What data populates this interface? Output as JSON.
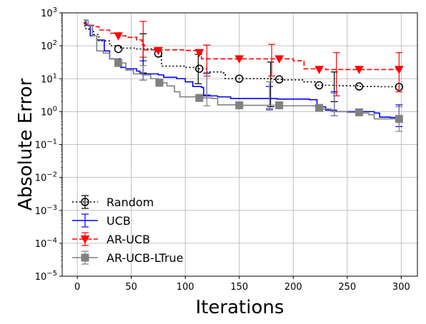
{
  "chart_data": {
    "type": "line",
    "xlabel": "Iterations",
    "ylabel": "Absolute Error",
    "xlim": [
      -14,
      315
    ],
    "ylim_log10": [
      -5,
      3
    ],
    "yscale": "log",
    "grid": true,
    "legend_placement": "lower-left",
    "x_ticks": [
      0,
      50,
      100,
      150,
      200,
      250,
      300
    ],
    "x_tick_labels": [
      "0",
      "50",
      "100",
      "150",
      "200",
      "250",
      "300"
    ],
    "y_ticks_log10": [
      -5,
      -4,
      -3,
      -2,
      -1,
      0,
      1,
      2,
      3
    ],
    "y_tick_labels": [
      {
        "base": "10",
        "exp": "−5"
      },
      {
        "base": "10",
        "exp": "−4"
      },
      {
        "base": "10",
        "exp": "−3"
      },
      {
        "base": "10",
        "exp": "−2"
      },
      {
        "base": "10",
        "exp": "−1"
      },
      {
        "base": "10",
        "exp": "0"
      },
      {
        "base": "10",
        "exp": "1"
      },
      {
        "base": "10",
        "exp": "2"
      },
      {
        "base": "10",
        "exp": "3"
      }
    ],
    "series": [
      {
        "name": "Random",
        "color": "#000000",
        "linestyle": "dotted",
        "marker": "circle-open",
        "line": [
          [
            6,
            500
          ],
          [
            7,
            380
          ],
          [
            8,
            330
          ],
          [
            10,
            320
          ],
          [
            15,
            220
          ],
          [
            20,
            140
          ],
          [
            30,
            100
          ],
          [
            40,
            85
          ],
          [
            55,
            80
          ],
          [
            75,
            70
          ],
          [
            78,
            24
          ],
          [
            100,
            22
          ],
          [
            110,
            20
          ],
          [
            120,
            16
          ],
          [
            135,
            15
          ],
          [
            137,
            10
          ],
          [
            150,
            10
          ],
          [
            180,
            9.5
          ],
          [
            190,
            9.2
          ],
          [
            210,
            8
          ],
          [
            220,
            6.3
          ],
          [
            240,
            6.1
          ],
          [
            260,
            5.8
          ],
          [
            280,
            5.7
          ],
          [
            298,
            5.6
          ]
        ],
        "markers": [
          [
            38,
            80
          ],
          [
            75,
            58
          ],
          [
            113,
            20
          ],
          [
            150,
            10
          ],
          [
            187,
            9.5
          ],
          [
            224,
            6.3
          ],
          [
            261,
            5.8
          ],
          [
            298,
            5.6
          ]
        ],
        "errorbars": [
          [
            61,
            60,
            230,
            15
          ],
          [
            112,
            20,
            55,
            7
          ],
          [
            179,
            10,
            32,
            1.4
          ],
          [
            238,
            6,
            16,
            2
          ]
        ]
      },
      {
        "name": "UCB",
        "color": "#0000ff",
        "linestyle": "solid",
        "marker": "none",
        "line": [
          [
            6,
            600
          ],
          [
            8,
            420
          ],
          [
            12,
            200
          ],
          [
            18,
            150
          ],
          [
            25,
            70
          ],
          [
            30,
            40
          ],
          [
            40,
            22
          ],
          [
            45,
            20
          ],
          [
            55,
            17
          ],
          [
            58,
            14
          ],
          [
            75,
            13
          ],
          [
            80,
            11
          ],
          [
            92,
            10
          ],
          [
            100,
            8
          ],
          [
            107,
            5.8
          ],
          [
            115,
            5.4
          ],
          [
            117,
            3
          ],
          [
            130,
            2.8
          ],
          [
            142,
            2.5
          ],
          [
            165,
            2.5
          ],
          [
            176,
            2.5
          ],
          [
            185,
            2.4
          ],
          [
            200,
            2.4
          ],
          [
            215,
            2.3
          ],
          [
            222,
            1.4
          ],
          [
            230,
            1.1
          ],
          [
            240,
            1.0
          ],
          [
            250,
            1.0
          ],
          [
            262,
            1.0
          ],
          [
            275,
            0.9
          ],
          [
            280,
            0.68
          ],
          [
            290,
            0.66
          ],
          [
            298,
            0.65
          ]
        ],
        "markers": [],
        "errorbars": [
          [
            61,
            13,
            35,
            9
          ],
          [
            120,
            7,
            15,
            3.2
          ],
          [
            178,
            2.4,
            5.8,
            1.2
          ],
          [
            238,
            1.0,
            4,
            0.75
          ],
          [
            298,
            0.6,
            1.6,
            0.35
          ]
        ]
      },
      {
        "name": "AR-UCB",
        "color": "#ff0000",
        "linestyle": "dashed",
        "marker": "triangle-down",
        "line": [
          [
            6,
            460
          ],
          [
            10,
            420
          ],
          [
            15,
            380
          ],
          [
            20,
            300
          ],
          [
            30,
            240
          ],
          [
            40,
            200
          ],
          [
            45,
            180
          ],
          [
            55,
            150
          ],
          [
            60,
            110
          ],
          [
            62,
            75
          ],
          [
            100,
            72
          ],
          [
            112,
            70
          ],
          [
            115,
            40
          ],
          [
            140,
            40
          ],
          [
            165,
            40
          ],
          [
            186,
            40
          ],
          [
            200,
            35
          ],
          [
            210,
            20
          ],
          [
            230,
            19
          ],
          [
            260,
            19
          ],
          [
            298,
            19
          ]
        ],
        "markers": [
          [
            38,
            200
          ],
          [
            75,
            72
          ],
          [
            113,
            62
          ],
          [
            150,
            40
          ],
          [
            187,
            40
          ],
          [
            224,
            19
          ],
          [
            261,
            19
          ],
          [
            298,
            19
          ]
        ],
        "errorbars": [
          [
            61,
            110,
            550,
            45
          ],
          [
            120,
            45,
            105,
            12
          ],
          [
            180,
            40,
            110,
            12
          ],
          [
            240,
            19,
            62,
            3
          ],
          [
            298,
            19,
            62,
            4
          ]
        ]
      },
      {
        "name": "AR-UCB-LTrue",
        "color": "#808080",
        "linestyle": "solid",
        "marker": "square",
        "line": [
          [
            6,
            600
          ],
          [
            10,
            400
          ],
          [
            14,
            200
          ],
          [
            18,
            70
          ],
          [
            24,
            60
          ],
          [
            30,
            40
          ],
          [
            38,
            30
          ],
          [
            45,
            18
          ],
          [
            52,
            14
          ],
          [
            60,
            13
          ],
          [
            68,
            10
          ],
          [
            75,
            7.5
          ],
          [
            83,
            6
          ],
          [
            90,
            4
          ],
          [
            95,
            2.8
          ],
          [
            110,
            2.6
          ],
          [
            125,
            2.5
          ],
          [
            130,
            1.6
          ],
          [
            150,
            1.55
          ],
          [
            165,
            1.55
          ],
          [
            187,
            1.5
          ],
          [
            200,
            1.5
          ],
          [
            220,
            1.45
          ],
          [
            224,
            1.2
          ],
          [
            235,
            1.0
          ],
          [
            250,
            0.95
          ],
          [
            262,
            0.9
          ],
          [
            270,
            0.8
          ],
          [
            275,
            0.6
          ],
          [
            298,
            0.6
          ]
        ],
        "markers": [
          [
            38,
            30
          ],
          [
            76,
            7.5
          ],
          [
            113,
            2.6
          ],
          [
            150,
            1.55
          ],
          [
            187,
            1.55
          ],
          [
            224,
            1.3
          ],
          [
            261,
            0.95
          ],
          [
            298,
            0.6
          ]
        ],
        "errorbars": [
          [
            61,
            13,
            25,
            9
          ],
          [
            120,
            3,
            14,
            1.5
          ],
          [
            178,
            1.5,
            8,
            1.1
          ],
          [
            238,
            1.0,
            3.6,
            0.75
          ],
          [
            298,
            0.6,
            1.4,
            0.25
          ]
        ]
      }
    ]
  }
}
